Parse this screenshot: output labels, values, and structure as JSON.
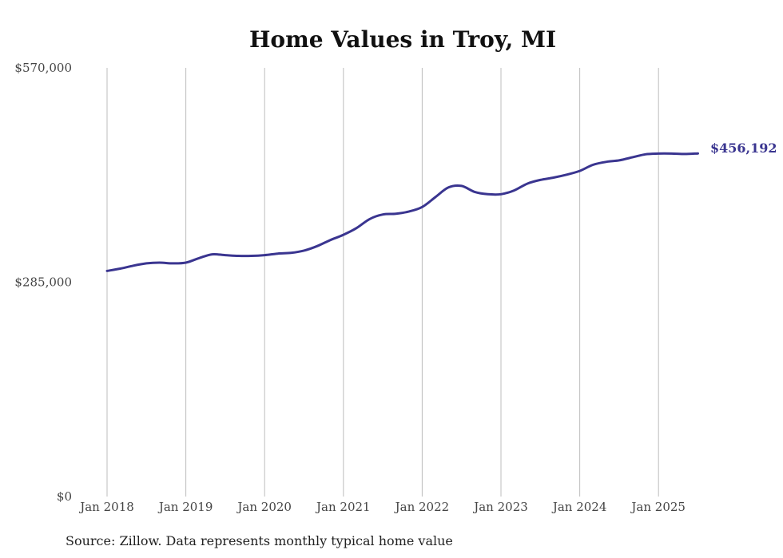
{
  "chart_data": {
    "type": "line",
    "title": "Home Values in Troy, MI",
    "xlabel": "",
    "ylabel": "",
    "ylim": [
      0,
      570000
    ],
    "y_ticks": [
      {
        "value": 0,
        "label": "$0"
      },
      {
        "value": 285000,
        "label": "$285,000"
      },
      {
        "value": 570000,
        "label": "$570,000"
      }
    ],
    "x_ticks": [
      "Jan 2018",
      "Jan 2019",
      "Jan 2020",
      "Jan 2021",
      "Jan 2022",
      "Jan 2023",
      "Jan 2024",
      "Jan 2025"
    ],
    "x_range": [
      "2018-01",
      "2025-07"
    ],
    "grid": "vertical",
    "line_color": "#3a3590",
    "series": [
      {
        "name": "",
        "x": [
          "2018-01",
          "2018-03",
          "2018-05",
          "2018-07",
          "2018-09",
          "2018-11",
          "2019-01",
          "2019-03",
          "2019-05",
          "2019-07",
          "2019-09",
          "2019-11",
          "2020-01",
          "2020-03",
          "2020-05",
          "2020-07",
          "2020-09",
          "2020-11",
          "2021-01",
          "2021-03",
          "2021-05",
          "2021-07",
          "2021-09",
          "2021-11",
          "2022-01",
          "2022-03",
          "2022-05",
          "2022-07",
          "2022-09",
          "2022-11",
          "2023-01",
          "2023-03",
          "2023-05",
          "2023-07",
          "2023-09",
          "2023-11",
          "2024-01",
          "2024-03",
          "2024-05",
          "2024-07",
          "2024-09",
          "2024-11",
          "2025-01",
          "2025-03",
          "2025-05",
          "2025-07"
        ],
        "values": [
          300000,
          303000,
          307000,
          310000,
          311000,
          310000,
          311000,
          317000,
          322000,
          321000,
          320000,
          320000,
          321000,
          323000,
          324000,
          327000,
          333000,
          341000,
          348000,
          357000,
          369000,
          375000,
          376000,
          379000,
          385000,
          398000,
          411000,
          413000,
          405000,
          402000,
          402000,
          407000,
          416000,
          421000,
          424000,
          428000,
          433000,
          441000,
          445000,
          447000,
          451000,
          455000,
          456000,
          456000,
          455500,
          456192
        ]
      }
    ],
    "end_label": "$456,192",
    "source": "Source: Zillow. Data represents monthly typical home value"
  }
}
